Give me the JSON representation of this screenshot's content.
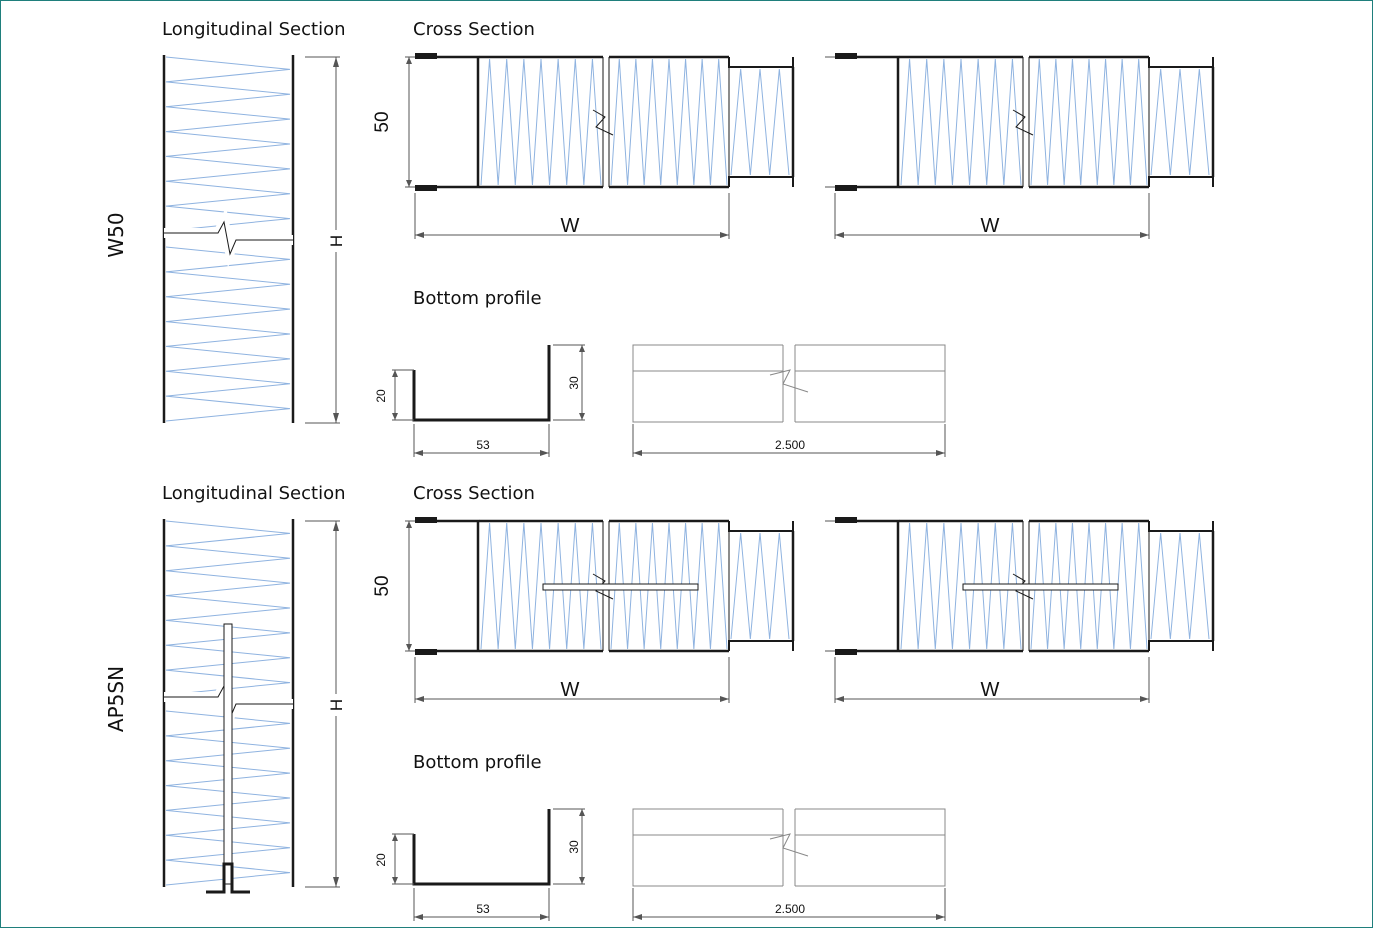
{
  "panels": [
    {
      "type_label": "W50",
      "has_spline": false,
      "longitudinal_title": "Longitudinal Section",
      "cross_title": "Cross Section",
      "bottom_title": "Bottom profile",
      "height_label": "H",
      "thickness_label": "50",
      "width_label": "W",
      "profile_flange_small": "20",
      "profile_flange_large": "30",
      "profile_width": "53",
      "profile_length": "2.500"
    },
    {
      "type_label": "AP5SN",
      "has_spline": true,
      "longitudinal_title": "Longitudinal Section",
      "cross_title": "Cross Section",
      "bottom_title": "Bottom profile",
      "height_label": "H",
      "thickness_label": "50",
      "width_label": "W",
      "profile_flange_small": "20",
      "profile_flange_large": "30",
      "profile_width": "53",
      "profile_length": "2.500"
    }
  ],
  "colors": {
    "frame": "#1f7f7c",
    "insulation": "#8fb3e0",
    "line": "#1a1a1a",
    "dimension": "#555555"
  }
}
